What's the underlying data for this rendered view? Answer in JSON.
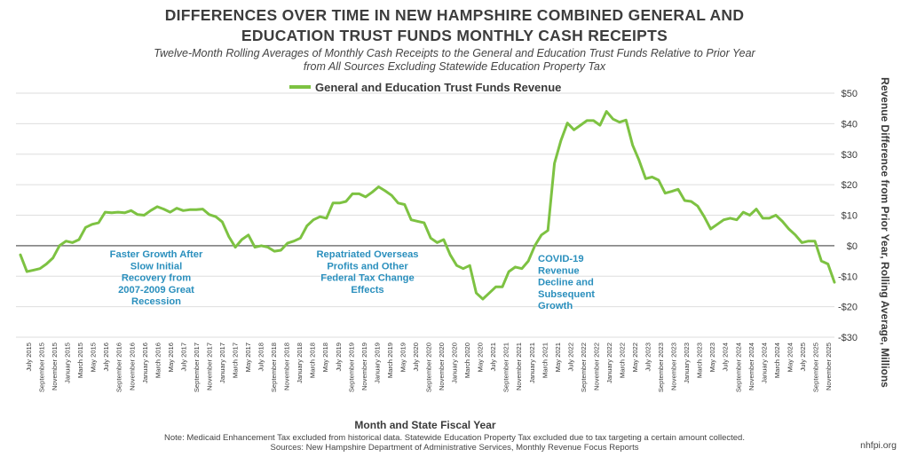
{
  "header": {
    "title_line1": "DIFFERENCES OVER TIME IN NEW HAMPSHIRE COMBINED GENERAL AND",
    "title_line2": "EDUCATION TRUST FUNDS MONTHLY CASH RECEIPTS",
    "subtitle_line1": "Twelve-Month Rolling Averages of Monthly Cash Receipts to the General and Education Trust Funds Relative to Prior Year",
    "subtitle_line2": "from All Sources Excluding Statewide Education Property Tax"
  },
  "footer": {
    "note": "Note: Medicaid Enhancement Tax excluded from historical data. Statewide Education Property Tax excluded due to tax targeting a certain amount collected.",
    "sources": "Sources: New Hampshire Department of Administrative Services, Monthly Revenue Focus Reports",
    "credit": "nhfpi.org"
  },
  "chart_data": {
    "type": "line",
    "title": "DIFFERENCES OVER TIME IN NEW HAMPSHIRE COMBINED GENERAL AND EDUCATION TRUST FUNDS MONTHLY CASH RECEIPTS",
    "xlabel": "Month and State Fiscal Year",
    "ylabel": "Revenue Difference from Prior Year, Rolling Average, Millions",
    "ylim": [
      -30,
      50
    ],
    "yticks": [
      50,
      40,
      30,
      20,
      10,
      0,
      -10,
      -20,
      -30
    ],
    "ytick_labels": [
      "$50",
      "$40",
      "$30",
      "$20",
      "$10",
      "$0",
      "-$10",
      "-$20",
      "-$30"
    ],
    "grid": true,
    "legend": "top",
    "color": "#7dc242",
    "x_tick_labels": [
      "July 2015",
      "September 2015",
      "November 2015",
      "January 2015",
      "March 2015",
      "May 2015",
      "July 2016",
      "September 2016",
      "November 2016",
      "January 2016",
      "March 2016",
      "May 2016",
      "July 2017",
      "September 2017",
      "November 2017",
      "January 2017",
      "March 2017",
      "May 2017",
      "July 2018",
      "September 2018",
      "November 2018",
      "January 2018",
      "March 2018",
      "May 2018",
      "July 2019",
      "September 2019",
      "November 2019",
      "January 2019",
      "March 2019",
      "May 2019",
      "July 2020",
      "September 2020",
      "November 2020",
      "January 2020",
      "March 2020",
      "May 2020",
      "July 2021",
      "September 2021",
      "November 2021",
      "January 2021",
      "March 2021",
      "May 2021",
      "July 2022",
      "September 2022",
      "November 2022",
      "January 2022",
      "March 2022",
      "May 2022",
      "July 2023",
      "September 2023",
      "November 2023",
      "January 2023",
      "March 2023",
      "May 2023",
      "July 2024",
      "September 2024",
      "November 2024",
      "January 2024",
      "March 2024",
      "May 2024",
      "July 2025",
      "September 2025",
      "November 2025"
    ],
    "series": [
      {
        "name": "General and Education Trust Funds Revenue",
        "values": [
          -3,
          -8.5,
          -8,
          -7.5,
          -6,
          -4,
          0,
          1.5,
          1,
          2,
          6,
          7,
          7.5,
          11,
          10.8,
          11,
          10.8,
          11.5,
          10.2,
          10,
          11.5,
          12.8,
          12,
          11,
          12.3,
          11.5,
          11.8,
          11.8,
          12,
          10.2,
          9.5,
          7.8,
          3,
          -0.5,
          2,
          3.5,
          -0.5,
          0,
          -0.5,
          -1.8,
          -1.5,
          0.8,
          1.5,
          2.5,
          6.5,
          8.5,
          9.5,
          9,
          14,
          14,
          14.5,
          17,
          17,
          16,
          17.5,
          19.3,
          18,
          16.5,
          14,
          13.5,
          8.5,
          8,
          7.5,
          2.5,
          1,
          2,
          -3,
          -6.5,
          -7.5,
          -6.5,
          -15.5,
          -17.5,
          -15.5,
          -13.5,
          -13.5,
          -8.5,
          -7,
          -7.5,
          -5,
          0,
          3.5,
          5,
          27,
          34.5,
          40.2,
          38,
          39.5,
          41,
          41,
          39.5,
          44,
          41.5,
          40.5,
          41.2,
          33,
          28,
          22,
          22.5,
          21.5,
          17.2,
          17.8,
          18.5,
          14.8,
          14.5,
          13,
          9.5,
          5.5,
          7,
          8.5,
          9,
          8.5,
          11,
          10,
          12,
          9,
          9,
          10,
          8,
          5.5,
          3.5,
          1,
          1.5,
          1.5,
          -5,
          -6,
          -12
        ]
      }
    ],
    "annotations": [
      {
        "lines": [
          "Faster Growth After",
          "Slow Initial",
          "Recovery from",
          "2007-2009 Great",
          "Recession"
        ]
      },
      {
        "lines": [
          "Repatriated Overseas",
          "Profits and Other",
          "Federal Tax Change",
          "Effects"
        ]
      },
      {
        "lines": [
          "COVID-19",
          "Revenue",
          "Decline and",
          "Subsequent",
          "Growth"
        ]
      }
    ]
  }
}
